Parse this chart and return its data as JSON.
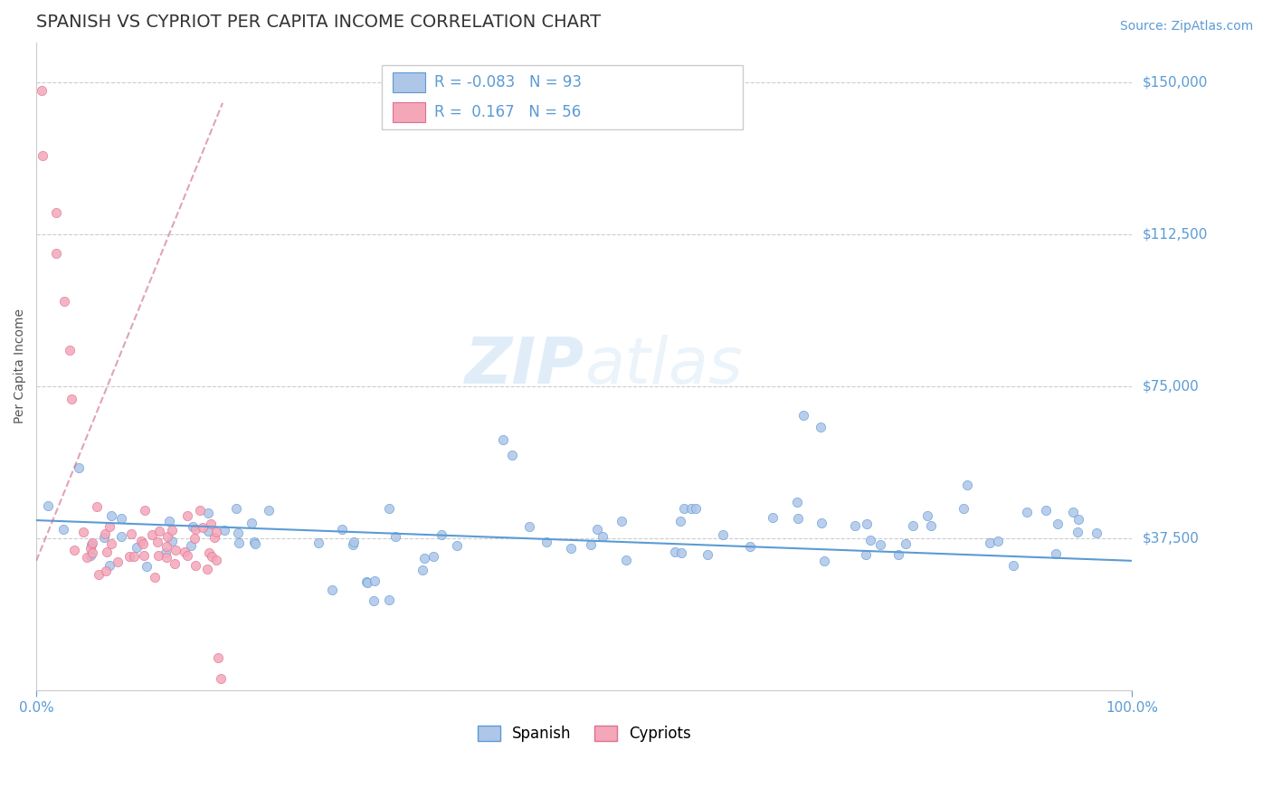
{
  "title": "SPANISH VS CYPRIOT PER CAPITA INCOME CORRELATION CHART",
  "source_text": "Source: ZipAtlas.com",
  "ylabel": "Per Capita Income",
  "watermark_zip": "ZIP",
  "watermark_atlas": "atlas",
  "xlim": [
    0.0,
    100.0
  ],
  "ylim": [
    0,
    160000
  ],
  "yticks": [
    0,
    37500,
    75000,
    112500,
    150000
  ],
  "ytick_labels": [
    "",
    "$37,500",
    "$75,000",
    "$112,500",
    "$150,000"
  ],
  "title_color": "#333333",
  "title_fontsize": 14,
  "axis_label_color": "#555555",
  "tick_color": "#5b9bd5",
  "source_color": "#5b9bd5",
  "grid_color": "#cccccc",
  "spanish_color": "#aec6e8",
  "cypriot_color": "#f4a7b9",
  "spanish_edge_color": "#5b9bd5",
  "cypriot_edge_color": "#e07090",
  "trendline_spanish_color": "#5b9bd5",
  "trendline_cypriot_color": "#cc6688",
  "R_spanish": -0.083,
  "N_spanish": 93,
  "R_cypriot": 0.167,
  "N_cypriot": 56,
  "legend_text_color": "#5b9bd5",
  "spanish_label": "Spanish",
  "cypriot_label": "Cypriots"
}
